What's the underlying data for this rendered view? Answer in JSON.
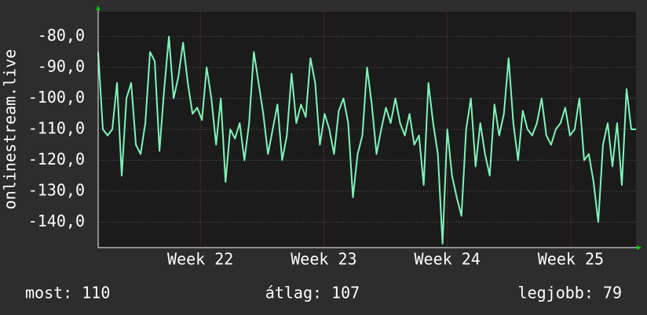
{
  "chart_data": {
    "type": "line",
    "y_label": "onlinestream.live",
    "series": [
      {
        "name": "onlinestream.live",
        "color": "#7ff5b8",
        "values": [
          -85,
          -110,
          -112,
          -110,
          -95,
          -125,
          -100,
          -95,
          -115,
          -118,
          -108,
          -85,
          -88,
          -117,
          -97,
          -80,
          -100,
          -93,
          -82,
          -95,
          -105,
          -103,
          -107,
          -90,
          -100,
          -115,
          -100,
          -127,
          -110,
          -113,
          -108,
          -120,
          -108,
          -85,
          -95,
          -105,
          -118,
          -110,
          -102,
          -120,
          -112,
          -92,
          -108,
          -102,
          -106,
          -87,
          -95,
          -115,
          -105,
          -110,
          -118,
          -104,
          -100,
          -108,
          -132,
          -118,
          -112,
          -90,
          -102,
          -118,
          -110,
          -103,
          -108,
          -100,
          -108,
          -112,
          -105,
          -115,
          -112,
          -128,
          -95,
          -108,
          -118,
          -147,
          -110,
          -125,
          -132,
          -138,
          -110,
          -100,
          -122,
          -108,
          -118,
          -125,
          -102,
          -112,
          -105,
          -87,
          -108,
          -120,
          -104,
          -110,
          -112,
          -108,
          -100,
          -112,
          -115,
          -110,
          -108,
          -103,
          -112,
          -110,
          -100,
          -120,
          -118,
          -127,
          -140,
          -115,
          -108,
          -122,
          -108,
          -128,
          -97,
          -110,
          -110
        ]
      }
    ],
    "xlim": [
      0,
      114
    ],
    "xticks": [
      {
        "value": 21.67,
        "label": "Week 22"
      },
      {
        "value": 47.83,
        "label": "Week 23"
      },
      {
        "value": 74,
        "label": "Week 24"
      },
      {
        "value": 100.17,
        "label": "Week 25"
      }
    ],
    "ylim": [
      -148,
      -72
    ],
    "yticks": [
      {
        "value": -80,
        "label": "-80,0"
      },
      {
        "value": -90,
        "label": "-90,0"
      },
      {
        "value": -100,
        "label": "-100,0"
      },
      {
        "value": -110,
        "label": "-110,0"
      },
      {
        "value": -120,
        "label": "-120,0"
      },
      {
        "value": -130,
        "label": "-130,0"
      },
      {
        "value": -140,
        "label": "-140,0"
      }
    ],
    "grid": true,
    "footer": {
      "current": "most: 110",
      "average": "átlag: 107",
      "best": "legjobb: 79"
    }
  }
}
